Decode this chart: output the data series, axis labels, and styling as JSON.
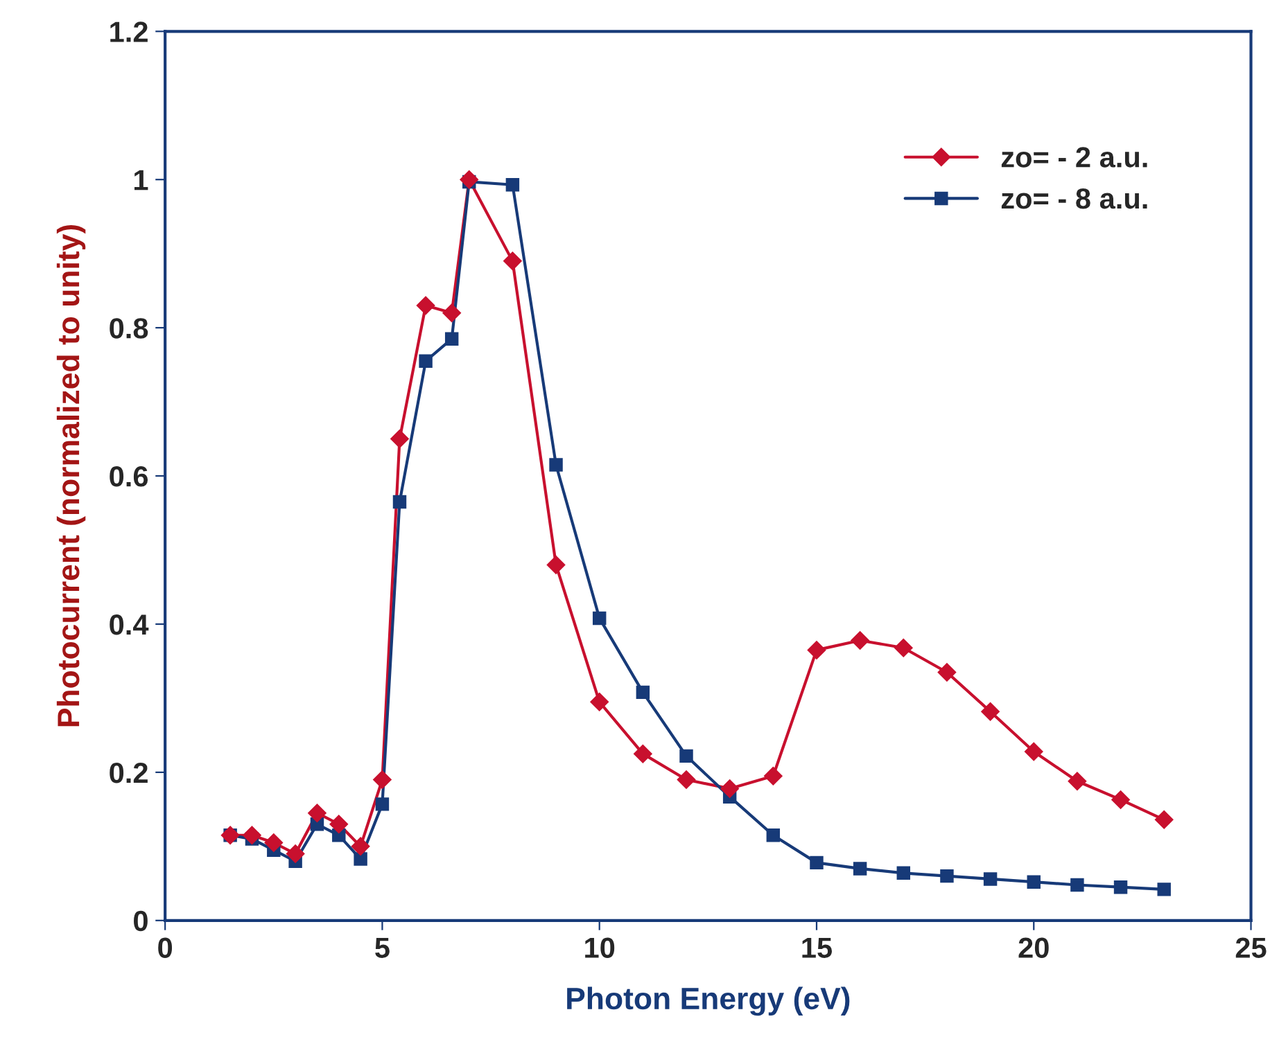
{
  "chart_data": {
    "type": "line",
    "xlabel": "Photon Energy (eV)",
    "ylabel": "Photocurrent (normalized to unity)",
    "xlim": [
      0,
      25
    ],
    "xticks": [
      0,
      5,
      10,
      15,
      20,
      25
    ],
    "ylim": [
      0,
      1.2
    ],
    "yticks": [
      0,
      0.2,
      0.4,
      0.6,
      0.8,
      1,
      1.2
    ],
    "grid": false,
    "legend": "top right",
    "line_style": "solid",
    "series": [
      {
        "name": "zo= - 2 a.u.",
        "color": "#c8102e",
        "marker": "diamond",
        "x": [
          1.5,
          2,
          2.5,
          3,
          3.5,
          4,
          4.5,
          5,
          5.4,
          6,
          6.6,
          7,
          8,
          9,
          10,
          11,
          12,
          13,
          14,
          15,
          16,
          17,
          18,
          19,
          20,
          21,
          22,
          23
        ],
        "values": [
          0.115,
          0.115,
          0.105,
          0.09,
          0.145,
          0.13,
          0.1,
          0.19,
          0.65,
          0.83,
          0.82,
          1.0,
          0.89,
          0.48,
          0.295,
          0.225,
          0.19,
          0.178,
          0.195,
          0.365,
          0.378,
          0.368,
          0.335,
          0.282,
          0.228,
          0.188,
          0.163,
          0.136
        ]
      },
      {
        "name": "zo= - 8 a.u.",
        "color": "#173a78",
        "marker": "square",
        "x": [
          1.5,
          2,
          2.5,
          3,
          3.5,
          4,
          4.5,
          5,
          5.4,
          6,
          6.6,
          7,
          8,
          9,
          10,
          11,
          12,
          13,
          14,
          15,
          16,
          17,
          18,
          19,
          20,
          21,
          22,
          23
        ],
        "values": [
          0.115,
          0.11,
          0.095,
          0.08,
          0.13,
          0.115,
          0.083,
          0.157,
          0.565,
          0.755,
          0.785,
          0.997,
          0.993,
          0.615,
          0.408,
          0.308,
          0.222,
          0.167,
          0.115,
          0.078,
          0.07,
          0.064,
          0.06,
          0.056,
          0.052,
          0.048,
          0.045,
          0.042
        ]
      }
    ]
  }
}
